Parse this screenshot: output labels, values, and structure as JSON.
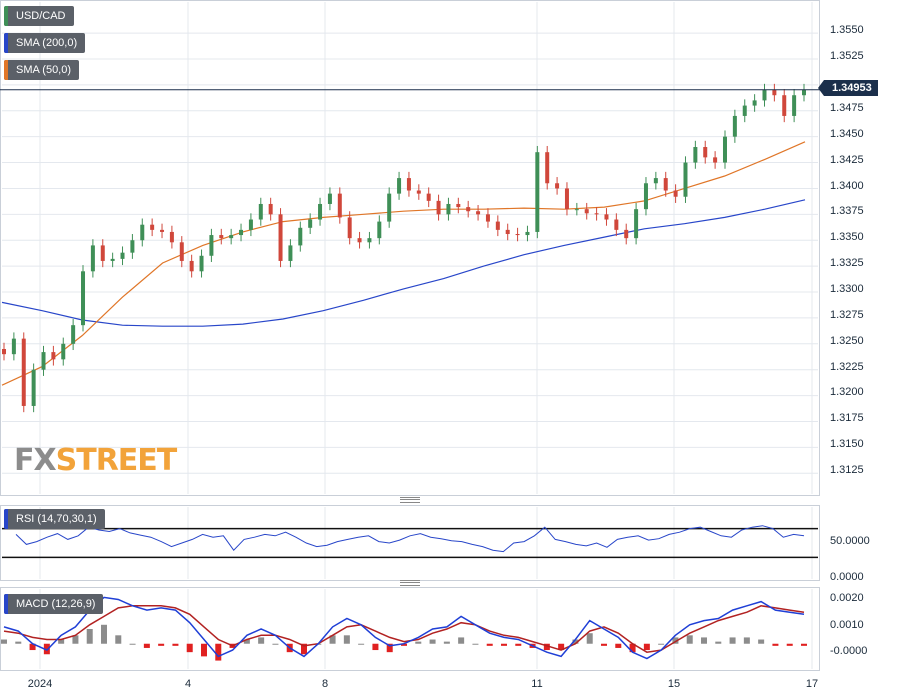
{
  "symbol": "USD/CAD",
  "legends": {
    "symbol": "USD/CAD",
    "sma200": "SMA (200,0)",
    "sma50": "SMA (50,0)",
    "rsi": "RSI (14,70,30,1)",
    "macd": "MACD (12,26,9)"
  },
  "colors": {
    "up": "#3f8f57",
    "down": "#d0473b",
    "sma200": "#2846c9",
    "sma50": "#e07628",
    "rsi": "#2846c9",
    "macd": "#1f3fd6",
    "signal": "#b22222",
    "hist_pos": "#8c8c8c",
    "hist_neg": "#e02020",
    "price_tag": "#1b2f4b",
    "watermark_fx": "#8c8c8c",
    "watermark_street": "#f2a33a"
  },
  "last_price": "1.34953",
  "watermark": {
    "fx": "FX",
    "street": "STREET"
  },
  "price_axis_labels": [
    "1.3550",
    "1.3525",
    "1.3475",
    "1.3450",
    "1.3425",
    "1.3400",
    "1.3375",
    "1.3350",
    "1.3325",
    "1.3300",
    "1.3275",
    "1.3250",
    "1.3225",
    "1.3200",
    "1.3175",
    "1.3150",
    "1.3125"
  ],
  "rsi_axis_labels": [
    "50.0000",
    "0.0000"
  ],
  "macd_axis_labels": [
    "0.0020",
    "0.0010",
    "-0.0000"
  ],
  "date_labels": [
    "2024",
    "4",
    "8",
    "11",
    "15",
    "17"
  ],
  "chart_data": [
    {
      "type": "candlestick",
      "title": "USD/CAD",
      "x_ticks": [
        "2024",
        "4",
        "8",
        "11",
        "15",
        "17"
      ],
      "ylim": [
        1.3105,
        1.358
      ],
      "last_price": 1.34953,
      "close": [
        1.324,
        1.3255,
        1.319,
        1.3225,
        1.3242,
        1.3235,
        1.325,
        1.3268,
        1.332,
        1.3345,
        1.333,
        1.3332,
        1.3338,
        1.335,
        1.3365,
        1.336,
        1.3358,
        1.3348,
        1.333,
        1.332,
        1.3335,
        1.3355,
        1.3352,
        1.3355,
        1.336,
        1.337,
        1.3385,
        1.3375,
        1.333,
        1.3345,
        1.3362,
        1.337,
        1.3385,
        1.3395,
        1.3372,
        1.3352,
        1.3348,
        1.3352,
        1.3368,
        1.3395,
        1.341,
        1.3398,
        1.3395,
        1.3388,
        1.3375,
        1.3385,
        1.3382,
        1.3378,
        1.3375,
        1.3368,
        1.336,
        1.3356,
        1.3355,
        1.3358,
        1.3435,
        1.3405,
        1.34,
        1.338,
        1.338,
        1.3376,
        1.3375,
        1.337,
        1.336,
        1.3352,
        1.338,
        1.3405,
        1.341,
        1.3398,
        1.3392,
        1.3425,
        1.344,
        1.343,
        1.3425,
        1.345,
        1.347,
        1.348,
        1.3485,
        1.3495,
        1.349,
        1.347,
        1.349,
        1.3495
      ],
      "sma200": {
        "x_frac": [
          0.0,
          0.05,
          0.1,
          0.15,
          0.2,
          0.25,
          0.3,
          0.35,
          0.4,
          0.45,
          0.5,
          0.55,
          0.6,
          0.65,
          0.7,
          0.75,
          0.8,
          0.85,
          0.9,
          0.95,
          1.0
        ],
        "values": [
          1.329,
          1.3282,
          1.3273,
          1.3268,
          1.3267,
          1.3267,
          1.3269,
          1.3274,
          1.3282,
          1.3292,
          1.3303,
          1.3313,
          1.3325,
          1.3336,
          1.3345,
          1.3353,
          1.3361,
          1.3366,
          1.3372,
          1.338,
          1.3389
        ]
      },
      "sma50": {
        "x_frac": [
          0.0,
          0.05,
          0.1,
          0.15,
          0.2,
          0.25,
          0.3,
          0.35,
          0.4,
          0.45,
          0.5,
          0.55,
          0.6,
          0.65,
          0.7,
          0.75,
          0.8,
          0.85,
          0.9,
          0.95,
          1.0
        ],
        "values": [
          1.321,
          1.3228,
          1.3258,
          1.3295,
          1.3328,
          1.3345,
          1.3358,
          1.3368,
          1.3372,
          1.3375,
          1.3378,
          1.338,
          1.338,
          1.3381,
          1.338,
          1.3382,
          1.3388,
          1.34,
          1.3412,
          1.3428,
          1.3445
        ]
      }
    },
    {
      "type": "line",
      "title": "RSI (14,70,30,1)",
      "ylim": [
        0,
        100
      ],
      "levels": [
        70,
        30
      ],
      "values": [
        62,
        48,
        52,
        58,
        63,
        55,
        60,
        72,
        68,
        66,
        70,
        64,
        61,
        58,
        52,
        45,
        50,
        55,
        62,
        58,
        60,
        40,
        55,
        58,
        62,
        60,
        65,
        58,
        50,
        45,
        47,
        52,
        55,
        58,
        60,
        52,
        50,
        54,
        60,
        63,
        58,
        56,
        53,
        52,
        48,
        45,
        40,
        38,
        50,
        52,
        60,
        72,
        55,
        52,
        48,
        46,
        50,
        44,
        55,
        58,
        60,
        54,
        56,
        62,
        65,
        70,
        72,
        66,
        60,
        58,
        68,
        72,
        74,
        70,
        58,
        62,
        60
      ]
    },
    {
      "type": "line",
      "title": "MACD (12,26,9)",
      "ylim": [
        -0.0012,
        0.0026
      ],
      "macd": [
        0.0008,
        0.0006,
        0.0,
        -0.0003,
        0.0004,
        0.0008,
        0.0016,
        0.0022,
        0.0021,
        0.0018,
        0.0016,
        0.0017,
        0.0016,
        0.001,
        0.0002,
        -0.0006,
        -0.0003,
        0.0004,
        0.0007,
        0.0004,
        -0.0002,
        -0.0006,
        0.0,
        0.0008,
        0.0012,
        0.0009,
        0.0003,
        -0.0001,
        0.0,
        0.0003,
        0.0007,
        0.0008,
        0.0013,
        0.0009,
        0.0005,
        0.0003,
        0.0002,
        -0.0001,
        -0.0004,
        -0.0006,
        0.0002,
        0.0011,
        0.0007,
        0.0003,
        -0.0004,
        -0.0007,
        -0.0003,
        0.0004,
        0.0009,
        0.0011,
        0.0012,
        0.0016,
        0.0018,
        0.002,
        0.0016,
        0.0015,
        0.0014
      ],
      "signal": [
        0.0006,
        0.0005,
        0.0003,
        0.0002,
        0.0002,
        0.0004,
        0.0009,
        0.0013,
        0.0017,
        0.0018,
        0.0018,
        0.0018,
        0.0017,
        0.0014,
        0.0008,
        0.0002,
        -0.0001,
        0.0002,
        0.0004,
        0.0004,
        0.0002,
        -0.0001,
        0.0,
        0.0004,
        0.0008,
        0.0009,
        0.0006,
        0.0003,
        0.0001,
        0.0002,
        0.0005,
        0.0007,
        0.001,
        0.0009,
        0.0006,
        0.0004,
        0.0003,
        0.0001,
        -0.0001,
        -0.0003,
        0.0,
        0.0006,
        0.0008,
        0.0005,
        0.0,
        -0.0004,
        -0.0003,
        0.0001,
        0.0005,
        0.0008,
        0.0011,
        0.0013,
        0.0015,
        0.0018,
        0.0017,
        0.0016,
        0.0015
      ]
    }
  ]
}
